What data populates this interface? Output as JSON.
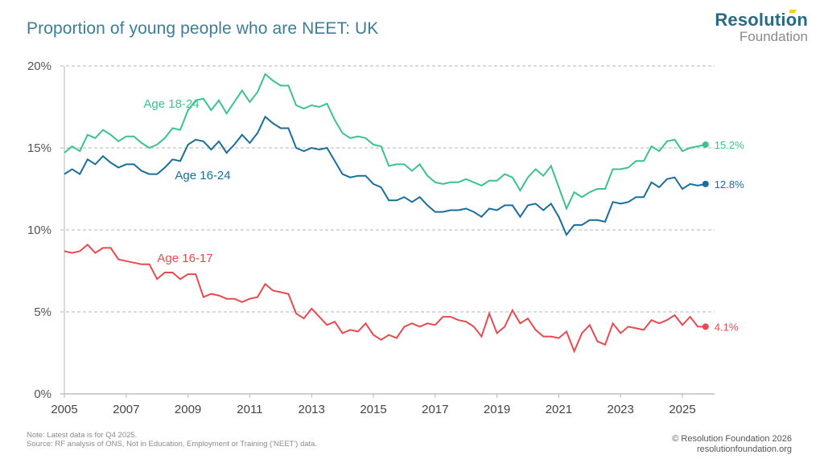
{
  "header": {
    "title": "Proportion of young people who are NEET: UK"
  },
  "logo": {
    "line1": "Resolution",
    "line2": "Foundation"
  },
  "footer": {
    "note": "Note: Latest data is for Q4 2025.",
    "source": "Source: RF analysis of ONS, Not in Education, Employment or Training ('NEET') data.",
    "copyright": "© Resolution Foundation 2026",
    "website": "resolutionfoundation.org"
  },
  "chart_data": {
    "type": "line",
    "title": "Proportion of young people who are NEET: UK",
    "xlabel": "",
    "ylabel": "",
    "frequency": "quarterly",
    "x_start": "2005 Q1",
    "x_end": "2025 Q4",
    "xlim": [
      2005,
      2025.75
    ],
    "ylim": [
      0,
      20
    ],
    "y_ticks": [
      "0%",
      "5%",
      "10%",
      "15%",
      "20%"
    ],
    "y_tick_values": [
      0,
      5,
      10,
      15,
      20
    ],
    "x_ticks": [
      "2005",
      "2007",
      "2009",
      "2011",
      "2013",
      "2015",
      "2017",
      "2019",
      "2021",
      "2023",
      "2025"
    ],
    "x_tick_values": [
      2005,
      2007,
      2009,
      2011,
      2013,
      2015,
      2017,
      2019,
      2021,
      2023,
      2025
    ],
    "grid": "horizontal dashed",
    "legend": "inline labels",
    "series": [
      {
        "name": "Age 18-24",
        "label": "Age 18-24",
        "color": "#3cc28f",
        "end_label": "15.2%",
        "values": [
          14.7,
          15.1,
          14.8,
          15.8,
          15.6,
          16.1,
          15.8,
          15.4,
          15.7,
          15.7,
          15.3,
          15.0,
          15.2,
          15.6,
          16.2,
          16.1,
          17.3,
          17.9,
          18.0,
          17.3,
          17.9,
          17.1,
          17.8,
          18.5,
          17.8,
          18.4,
          19.5,
          19.1,
          18.8,
          18.8,
          17.6,
          17.4,
          17.6,
          17.5,
          17.7,
          16.7,
          15.9,
          15.6,
          15.7,
          15.6,
          15.2,
          15.1,
          13.9,
          14.0,
          14.0,
          13.6,
          14.0,
          13.3,
          12.9,
          12.8,
          12.9,
          12.9,
          13.1,
          12.9,
          12.7,
          13.0,
          13.0,
          13.4,
          13.2,
          12.4,
          13.2,
          13.7,
          13.3,
          13.9,
          12.6,
          11.3,
          12.3,
          12.0,
          12.3,
          12.5,
          12.5,
          13.7,
          13.7,
          13.8,
          14.2,
          14.2,
          15.1,
          14.8,
          15.4,
          15.5,
          14.8,
          15.0,
          15.1,
          15.2
        ]
      },
      {
        "name": "Age 16-24",
        "label": "Age 16-24",
        "color": "#1a6e9a",
        "end_label": "12.8%",
        "values": [
          13.4,
          13.7,
          13.4,
          14.3,
          14.0,
          14.5,
          14.1,
          13.8,
          14.0,
          14.0,
          13.6,
          13.4,
          13.4,
          13.8,
          14.3,
          14.2,
          15.2,
          15.5,
          15.4,
          14.9,
          15.4,
          14.7,
          15.2,
          15.8,
          15.3,
          15.9,
          16.9,
          16.5,
          16.2,
          16.2,
          15.0,
          14.8,
          15.0,
          14.9,
          15.0,
          14.2,
          13.4,
          13.2,
          13.3,
          13.3,
          12.8,
          12.6,
          11.8,
          11.8,
          12.0,
          11.7,
          12.0,
          11.5,
          11.1,
          11.1,
          11.2,
          11.2,
          11.3,
          11.1,
          10.8,
          11.3,
          11.2,
          11.5,
          11.5,
          10.8,
          11.5,
          11.6,
          11.2,
          11.6,
          10.8,
          9.7,
          10.3,
          10.3,
          10.6,
          10.6,
          10.5,
          11.7,
          11.6,
          11.7,
          12.0,
          12.0,
          12.9,
          12.6,
          13.1,
          13.2,
          12.5,
          12.8,
          12.7,
          12.8
        ]
      },
      {
        "name": "Age 16-17",
        "label": "Age 16-17",
        "color": "#e84a4f",
        "end_label": "4.1%",
        "values": [
          8.7,
          8.6,
          8.7,
          9.1,
          8.6,
          8.9,
          8.9,
          8.2,
          8.1,
          8.0,
          7.9,
          7.9,
          7.0,
          7.4,
          7.4,
          7.0,
          7.3,
          7.3,
          5.9,
          6.1,
          6.0,
          5.8,
          5.8,
          5.6,
          5.8,
          5.9,
          6.7,
          6.3,
          6.2,
          6.1,
          4.9,
          4.6,
          5.2,
          4.7,
          4.2,
          4.4,
          3.7,
          3.9,
          3.8,
          4.3,
          3.6,
          3.3,
          3.6,
          3.4,
          4.1,
          4.3,
          4.1,
          4.3,
          4.2,
          4.7,
          4.7,
          4.5,
          4.4,
          4.1,
          3.5,
          4.9,
          3.7,
          4.1,
          5.1,
          4.3,
          4.6,
          3.9,
          3.5,
          3.5,
          3.4,
          3.8,
          2.6,
          3.7,
          4.2,
          3.2,
          3.0,
          4.3,
          3.7,
          4.1,
          4.0,
          3.9,
          4.5,
          4.3,
          4.5,
          4.8,
          4.2,
          4.7,
          4.1,
          4.1
        ]
      }
    ]
  }
}
